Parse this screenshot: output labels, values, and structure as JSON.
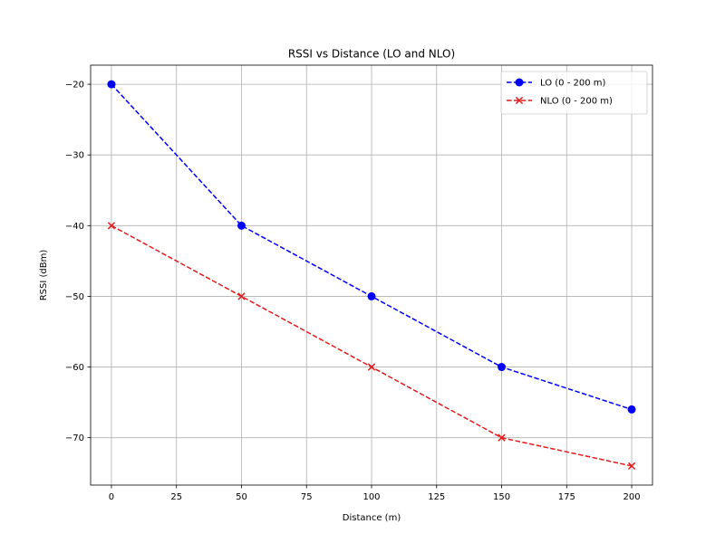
{
  "chart_data": {
    "type": "line",
    "title": "RSSI vs Distance (LO and NLO)",
    "xlabel": "Distance (m)",
    "ylabel": "RSSI (dBm)",
    "x": [
      0,
      50,
      100,
      150,
      200
    ],
    "xlim": [
      -8,
      208
    ],
    "ylim": [
      -76.7,
      -17.3
    ],
    "xticks": [
      0,
      25,
      50,
      75,
      100,
      125,
      150,
      175,
      200
    ],
    "xtick_labels": [
      "0",
      "25",
      "50",
      "75",
      "100",
      "125",
      "150",
      "175",
      "200"
    ],
    "yticks": [
      -20,
      -30,
      -40,
      -50,
      -60,
      -70
    ],
    "ytick_labels": [
      "−20",
      "−30",
      "−40",
      "−50",
      "−60",
      "−70"
    ],
    "grid": true,
    "legend_position": "top-right",
    "series": [
      {
        "name": "LO (0 - 200 m)",
        "values": [
          -20,
          -40,
          -50,
          -60,
          -66
        ],
        "color": "#0000ff",
        "marker": "circle",
        "linestyle": "dashed"
      },
      {
        "name": "NLO (0 - 200 m)",
        "values": [
          -40,
          -50,
          -60,
          -70,
          -74
        ],
        "color": "#e41a1c",
        "marker": "x",
        "linestyle": "dashed"
      }
    ]
  }
}
